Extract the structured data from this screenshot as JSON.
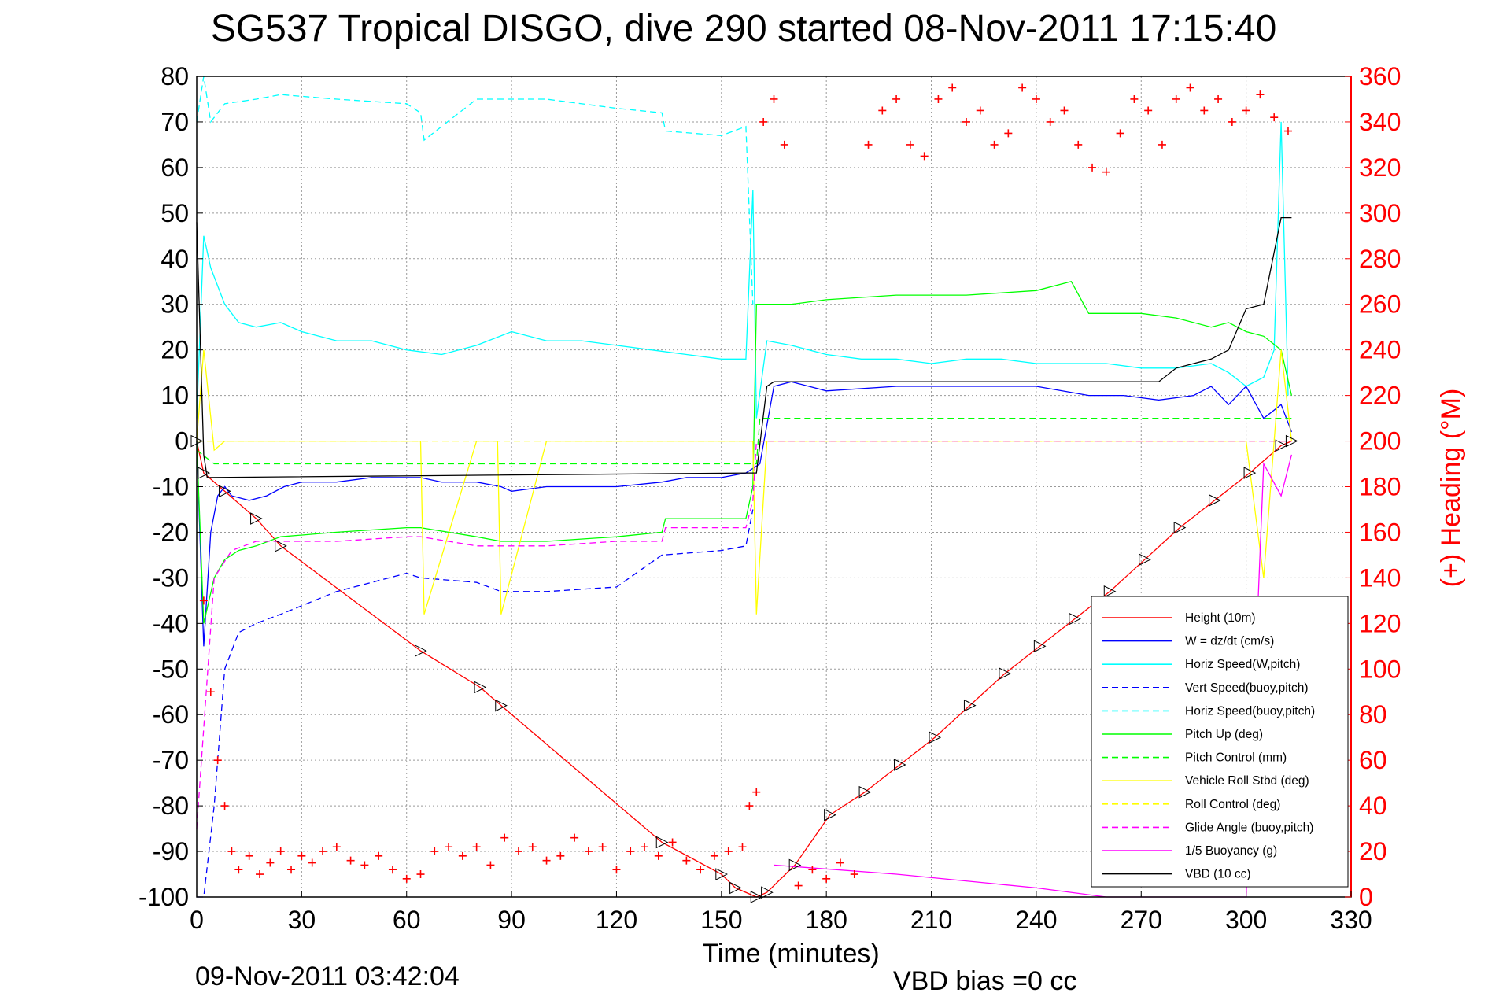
{
  "chart_data": {
    "type": "line",
    "title": "SG537 Tropical DISGO, dive 290 started 08-Nov-2011 17:15:40",
    "xlabel": "Time (minutes)",
    "ylabel_right": "(+) Heading (°M)",
    "xlim": [
      0,
      330
    ],
    "ylim": [
      -100,
      80
    ],
    "ylim_right": [
      0,
      360
    ],
    "x_ticks": [
      "0",
      "30",
      "60",
      "90",
      "120",
      "150",
      "180",
      "210",
      "240",
      "270",
      "300",
      "330"
    ],
    "y_ticks": [
      "80",
      "70",
      "60",
      "50",
      "40",
      "30",
      "20",
      "10",
      "0",
      "-10",
      "-20",
      "-30",
      "-40",
      "-50",
      "-60",
      "-70",
      "-80",
      "-90",
      "-100"
    ],
    "y_right_ticks": [
      "360",
      "340",
      "320",
      "300",
      "280",
      "260",
      "240",
      "220",
      "200",
      "180",
      "160",
      "140",
      "120",
      "100",
      "80",
      "60",
      "40",
      "20",
      "0"
    ],
    "grid": true,
    "legend_position": "bottom-right",
    "footer_left": "09-Nov-2011 03:42:04",
    "footer_right": "VBD bias =0 cc",
    "colors": {
      "height": "#ff0000",
      "w": "#0000ff",
      "horiz": "#00ffff",
      "pitch": "#00ff00",
      "roll": "#ffff00",
      "glide": "#ff00ff",
      "vbd": "#000000",
      "heading": "#ff0000"
    },
    "series": [
      {
        "name": "Height (10m)",
        "color": "#ff0000",
        "dash": "solid",
        "x": [
          0,
          2,
          8,
          17,
          24,
          64,
          81,
          87,
          133,
          150,
          154,
          160,
          163,
          171,
          181,
          191,
          201,
          211,
          221,
          231,
          241,
          251,
          261,
          271,
          281,
          291,
          301,
          310,
          313
        ],
        "y": [
          0,
          -7,
          -11,
          -17,
          -23,
          -46,
          -54,
          -58,
          -88,
          -95,
          -98,
          -100,
          -99,
          -93,
          -82,
          -77,
          -71,
          -65,
          -58,
          -51,
          -45,
          -39,
          -33,
          -26,
          -19,
          -13,
          -7,
          -1,
          0
        ]
      },
      {
        "name": "W = dz/dt (cm/s)",
        "color": "#0000ff",
        "dash": "solid",
        "x": [
          0,
          2,
          4,
          6,
          8,
          10,
          15,
          20,
          25,
          30,
          40,
          50,
          60,
          64,
          70,
          80,
          87,
          90,
          100,
          120,
          133,
          140,
          150,
          157,
          159,
          161,
          165,
          170,
          180,
          200,
          220,
          240,
          255,
          265,
          275,
          285,
          290,
          295,
          300,
          305,
          310,
          313
        ],
        "y": [
          0,
          -45,
          -20,
          -12,
          -10,
          -12,
          -13,
          -12,
          -10,
          -9,
          -9,
          -8,
          -8,
          -8,
          -9,
          -9,
          -10,
          -11,
          -10,
          -10,
          -9,
          -8,
          -8,
          -7,
          -6,
          -5,
          12,
          13,
          11,
          12,
          12,
          12,
          10,
          10,
          9,
          10,
          12,
          8,
          12,
          5,
          8,
          2
        ]
      },
      {
        "name": "Horiz Speed(W,pitch)",
        "color": "#00ffff",
        "dash": "solid",
        "x": [
          0,
          2,
          4,
          8,
          12,
          17,
          24,
          30,
          40,
          50,
          60,
          70,
          80,
          90,
          100,
          110,
          120,
          130,
          140,
          150,
          157,
          159,
          160,
          163,
          170,
          180,
          190,
          200,
          210,
          220,
          230,
          240,
          250,
          260,
          270,
          280,
          290,
          295,
          300,
          305,
          308,
          310,
          312
        ],
        "y": [
          5,
          45,
          38,
          30,
          26,
          25,
          26,
          24,
          22,
          22,
          20,
          19,
          21,
          24,
          22,
          22,
          21,
          20,
          19,
          18,
          18,
          55,
          5,
          22,
          21,
          19,
          18,
          18,
          17,
          18,
          18,
          17,
          17,
          17,
          16,
          16,
          17,
          15,
          12,
          14,
          20,
          70,
          10
        ]
      },
      {
        "name": "Vert Speed(buoy,pitch)",
        "color": "#0000ff",
        "dash": "dashed",
        "x": [
          0,
          2,
          5,
          8,
          12,
          17,
          24,
          40,
          60,
          64,
          80,
          87,
          100,
          120,
          133,
          150,
          157,
          159
        ],
        "y": [
          -100,
          -100,
          -80,
          -50,
          -42,
          -40,
          -38,
          -33,
          -29,
          -30,
          -31,
          -33,
          -33,
          -32,
          -25,
          -24,
          -23,
          -15
        ]
      },
      {
        "name": "Horiz Speed(buoy,pitch)",
        "color": "#00ffff",
        "dash": "dashed",
        "x": [
          0,
          2,
          4,
          8,
          17,
          24,
          40,
          60,
          64,
          65,
          80,
          87,
          100,
          120,
          133,
          134,
          150,
          157,
          159
        ],
        "y": [
          70,
          80,
          70,
          74,
          75,
          76,
          75,
          74,
          72,
          66,
          75,
          75,
          75,
          73,
          72,
          68,
          67,
          69,
          30
        ]
      },
      {
        "name": "Pitch Up (deg)",
        "color": "#00ff00",
        "dash": "solid",
        "x": [
          0,
          2,
          5,
          8,
          12,
          17,
          24,
          40,
          60,
          64,
          80,
          87,
          100,
          120,
          133,
          134,
          150,
          157,
          159,
          160,
          163,
          170,
          180,
          200,
          220,
          240,
          250,
          255,
          260,
          270,
          280,
          290,
          295,
          300,
          305,
          310,
          313
        ],
        "y": [
          0,
          -40,
          -30,
          -26,
          -24,
          -23,
          -21,
          -20,
          -19,
          -19,
          -21,
          -22,
          -22,
          -21,
          -20,
          -17,
          -17,
          -17,
          -10,
          30,
          30,
          30,
          31,
          32,
          32,
          33,
          35,
          28,
          28,
          28,
          27,
          25,
          26,
          24,
          23,
          20,
          10
        ]
      },
      {
        "name": "Pitch Control (mm)",
        "color": "#00ff00",
        "dash": "dashed",
        "x": [
          0,
          5,
          160,
          161,
          313
        ],
        "y": [
          -2,
          -5,
          -5,
          5,
          5
        ]
      },
      {
        "name": "Vehicle Roll Stbd (deg)",
        "color": "#ffff00",
        "dash": "solid",
        "x": [
          0,
          2,
          5,
          8,
          15,
          24,
          40,
          60,
          64,
          65,
          80,
          86,
          87,
          100,
          130,
          133,
          150,
          155,
          159,
          160,
          163,
          200,
          240,
          280,
          300,
          305,
          310,
          313
        ],
        "y": [
          0,
          20,
          -2,
          0,
          0,
          0,
          0,
          0,
          0,
          -38,
          0,
          0,
          -38,
          0,
          0,
          0,
          0,
          0,
          0,
          -38,
          0,
          0,
          0,
          0,
          0,
          -30,
          20,
          0
        ]
      },
      {
        "name": "Roll Control (deg)",
        "color": "#ffff00",
        "dash": "dashed",
        "x": [
          0,
          160,
          161,
          313
        ],
        "y": [
          0,
          0,
          0,
          0
        ]
      },
      {
        "name": "Glide Angle (buoy,pitch)",
        "color": "#ff00ff",
        "dash": "dashed",
        "x": [
          0,
          5,
          10,
          17,
          24,
          40,
          60,
          64,
          80,
          87,
          100,
          120,
          133,
          134,
          150,
          157,
          159,
          160,
          313
        ],
        "y": [
          -85,
          -30,
          -24,
          -22,
          -22,
          -22,
          -21,
          -21,
          -23,
          -23,
          -23,
          -22,
          -22,
          -19,
          -19,
          -19,
          -13,
          0,
          0
        ]
      },
      {
        "name": "1/5 Buoyancy (g)",
        "color": "#ff00ff",
        "dash": "solid",
        "x": [
          165,
          200,
          240,
          260,
          270,
          300,
          305,
          310,
          313
        ],
        "y": [
          -93,
          -95,
          -98,
          -100,
          -100,
          -100,
          -5,
          -12,
          -3
        ]
      },
      {
        "name": "VBD (10 cc)",
        "color": "#000000",
        "dash": "solid",
        "x": [
          0,
          2,
          3,
          158,
          160,
          163,
          165,
          240,
          275,
          280,
          290,
          295,
          300,
          305,
          310,
          313
        ],
        "y": [
          48,
          -3,
          -8,
          -7,
          -7,
          12,
          13,
          13,
          13,
          16,
          18,
          20,
          29,
          30,
          49,
          49
        ]
      },
      {
        "name": "Heading",
        "color": "#ff0000",
        "dash": "points",
        "x": [
          2,
          4,
          6,
          8,
          10,
          12,
          15,
          18,
          21,
          24,
          27,
          30,
          33,
          36,
          40,
          44,
          48,
          52,
          56,
          60,
          64,
          68,
          72,
          76,
          80,
          84,
          88,
          92,
          96,
          100,
          104,
          108,
          112,
          116,
          120,
          124,
          128,
          132,
          136,
          140,
          144,
          148,
          152,
          156,
          158,
          160,
          162,
          165,
          168,
          172,
          176,
          180,
          184,
          188,
          192,
          196,
          200,
          204,
          208,
          212,
          216,
          220,
          224,
          228,
          232,
          236,
          240,
          244,
          248,
          252,
          256,
          260,
          264,
          268,
          272,
          276,
          280,
          284,
          288,
          292,
          296,
          300,
          304,
          308,
          312
        ],
        "y": [
          130,
          90,
          60,
          40,
          20,
          12,
          18,
          10,
          15,
          20,
          12,
          18,
          15,
          20,
          22,
          16,
          14,
          18,
          12,
          8,
          10,
          20,
          22,
          18,
          22,
          14,
          26,
          20,
          22,
          16,
          18,
          26,
          20,
          22,
          12,
          20,
          22,
          18,
          24,
          16,
          12,
          18,
          20,
          22,
          40,
          46,
          340,
          350,
          330,
          5,
          12,
          8,
          15,
          10,
          330,
          345,
          350,
          330,
          325,
          350,
          355,
          340,
          345,
          330,
          335,
          355,
          350,
          340,
          345,
          330,
          320,
          318,
          335,
          350,
          345,
          330,
          350,
          355,
          345,
          350,
          340,
          345,
          352,
          342,
          336
        ]
      }
    ]
  }
}
